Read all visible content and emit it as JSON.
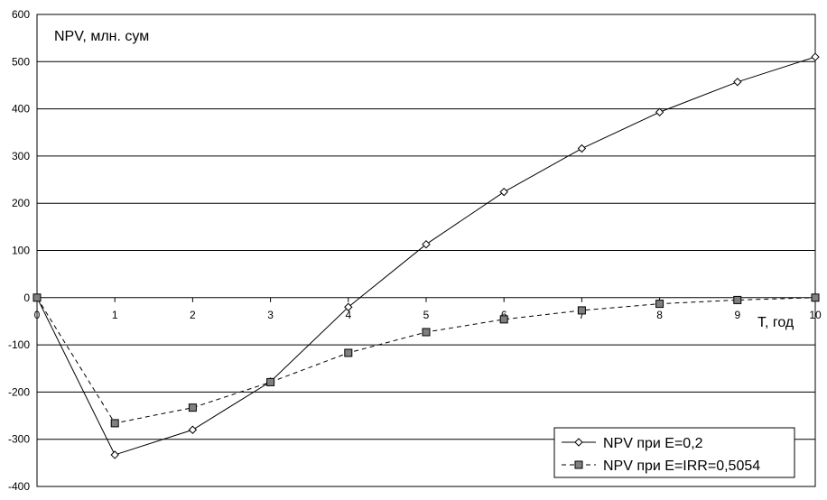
{
  "chart_data": {
    "type": "line",
    "ylabel": "NPV, млн. сум",
    "xlabel": "T, год",
    "x": [
      0,
      1,
      2,
      3,
      4,
      5,
      6,
      7,
      8,
      9,
      10
    ],
    "xlim": [
      0,
      10
    ],
    "ylim": [
      -400,
      600
    ],
    "ytick_step": 100,
    "grid": "horizontal",
    "legend_position": "bottom-right",
    "series": [
      {
        "name": "NPV при E=0,2",
        "marker": "diamond-open",
        "line_style": "solid",
        "values": [
          0,
          -333,
          -280,
          -178,
          -20,
          113,
          224,
          316,
          393,
          457,
          510
        ]
      },
      {
        "name": "NPV при E=IRR=0,5054",
        "marker": "square-filled",
        "line_style": "dashed",
        "values": [
          0,
          -266,
          -233,
          -179,
          -117,
          -73,
          -46,
          -27,
          -13,
          -5,
          0
        ]
      }
    ]
  },
  "colors": {
    "line": "#000000",
    "marker_fill_square": "#808080",
    "marker_fill_diamond": "#ffffff",
    "grid": "#000000"
  }
}
